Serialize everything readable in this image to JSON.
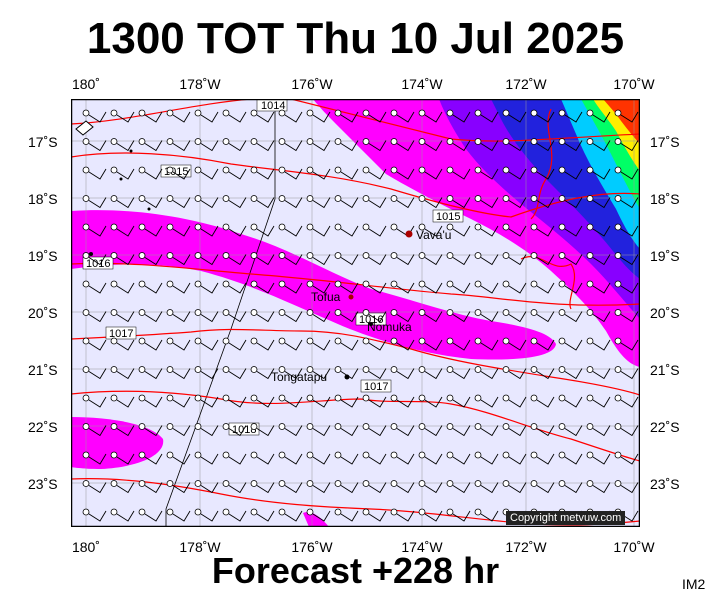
{
  "title": "1300 TOT Thu 10 Jul 2025",
  "footer": "Forecast +228 hr",
  "image_code": "IM2",
  "copyright": "Copyright metvuw.com",
  "lon_labels": [
    "180˚",
    "178˚W",
    "176˚W",
    "174˚W",
    "172˚W",
    "170˚W"
  ],
  "lat_labels": [
    "17˚S",
    "18˚S",
    "19˚S",
    "20˚S",
    "21˚S",
    "22˚S",
    "23˚S"
  ],
  "places": [
    "Vava'u",
    "Tofua",
    "Nomuka",
    "Tongatapu"
  ],
  "isobar_labels": [
    "1014",
    "1015",
    "1015",
    "1016",
    "1016",
    "1017",
    "1017",
    "1018"
  ],
  "colors": {
    "background": "#e8e8ff",
    "rain_magenta": "#ff00ff",
    "rain_purple": "#8800ff",
    "rain_blue": "#2222dd",
    "rain_cyan": "#00ccff",
    "rain_green": "#00ff66",
    "rain_yellow": "#ffee00",
    "rain_red": "#ff3300",
    "isobar": "#ff0000"
  }
}
